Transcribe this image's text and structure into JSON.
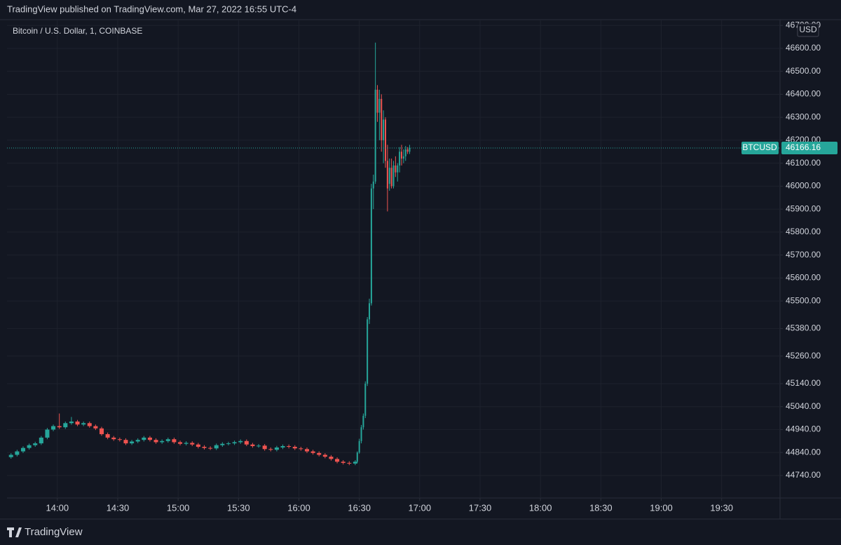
{
  "header": "TradingView published on TradingView.com, Mar 27, 2022 16:55 UTC-4",
  "footer": "TradingView",
  "chart_data": {
    "type": "candlestick",
    "title": "Bitcoin / U.S. Dollar, 1, COINBASE",
    "currency": "USD",
    "up_color": "#26a69a",
    "down_color": "#ef5350",
    "grid": true,
    "xlim": [
      "13:35",
      "19:59"
    ],
    "xticks": [
      "14:00",
      "14:30",
      "15:00",
      "15:30",
      "16:00",
      "16:30",
      "17:00",
      "17:30",
      "18:00",
      "18:30",
      "19:00",
      "19:30"
    ],
    "ylim": [
      44642,
      46719
    ],
    "yticks": [
      {
        "value": 44740,
        "label": "44740.00"
      },
      {
        "value": 44840,
        "label": "44840.00"
      },
      {
        "value": 44940,
        "label": "44940.00"
      },
      {
        "value": 45040,
        "label": "45040.00"
      },
      {
        "value": 45140,
        "label": "45140.00"
      },
      {
        "value": 45260,
        "label": "45260.00"
      },
      {
        "value": 45380,
        "label": "45380.00"
      },
      {
        "value": 45500,
        "label": "45500.00"
      },
      {
        "value": 45600,
        "label": "45600.00"
      },
      {
        "value": 45700,
        "label": "45700.00"
      },
      {
        "value": 45800,
        "label": "45800.00"
      },
      {
        "value": 45900,
        "label": "45900.00"
      },
      {
        "value": 46000,
        "label": "46000.00"
      },
      {
        "value": 46100,
        "label": "46100.00"
      },
      {
        "value": 46200,
        "label": "46200.00"
      },
      {
        "value": 46300,
        "label": "46300.00"
      },
      {
        "value": 46400,
        "label": "46400.00"
      },
      {
        "value": 46500,
        "label": "46500.00"
      },
      {
        "value": 46600,
        "label": "46600.00"
      },
      {
        "value": 46700,
        "label": "46700.00"
      }
    ],
    "last_price": {
      "symbol": "BTCUSD",
      "value": 46166.16
    },
    "candles": {
      "x": [
        "13:37",
        "13:40",
        "13:43",
        "13:46",
        "13:49",
        "13:52",
        "13:55",
        "13:58",
        "14:01",
        "14:04",
        "14:07",
        "14:10",
        "14:13",
        "14:16",
        "14:19",
        "14:22",
        "14:25",
        "14:28",
        "14:31",
        "14:34",
        "14:37",
        "14:40",
        "14:43",
        "14:46",
        "14:49",
        "14:52",
        "14:55",
        "14:58",
        "15:01",
        "15:04",
        "15:07",
        "15:10",
        "15:13",
        "15:16",
        "15:19",
        "15:22",
        "15:25",
        "15:28",
        "15:31",
        "15:34",
        "15:37",
        "15:40",
        "15:43",
        "15:46",
        "15:49",
        "15:52",
        "15:55",
        "15:58",
        "16:01",
        "16:04",
        "16:07",
        "16:10",
        "16:13",
        "16:16",
        "16:19",
        "16:22",
        "16:25",
        "16:28",
        "16:29",
        "16:30",
        "16:31",
        "16:32",
        "16:33",
        "16:34",
        "16:35",
        "16:36",
        "16:37",
        "16:38",
        "16:39",
        "16:40",
        "16:41",
        "16:42",
        "16:43",
        "16:44",
        "16:45",
        "16:46",
        "16:47",
        "16:48",
        "16:49",
        "16:50",
        "16:51",
        "16:52",
        "16:53",
        "16:54",
        "16:55"
      ],
      "open": [
        44820,
        44830,
        44845,
        44860,
        44872,
        44880,
        44905,
        44940,
        44955,
        44950,
        44968,
        44975,
        44962,
        44968,
        44955,
        44945,
        44920,
        44905,
        44898,
        44895,
        44880,
        44888,
        44895,
        44905,
        44895,
        44885,
        44890,
        44898,
        44885,
        44878,
        44882,
        44875,
        44865,
        44860,
        44858,
        44872,
        44878,
        44880,
        44885,
        44890,
        44875,
        44868,
        44870,
        44855,
        44852,
        44862,
        44868,
        44865,
        44858,
        44855,
        44845,
        44838,
        44830,
        44822,
        44812,
        44800,
        44795,
        44792,
        44800,
        44840,
        44890,
        44950,
        45000,
        45140,
        45420,
        45490,
        45990,
        46020,
        46420,
        46320,
        46380,
        46200,
        46290,
        46110,
        46010,
        46080,
        46000,
        46090,
        46060,
        46090,
        46150,
        46120,
        46130,
        46160,
        46150
      ],
      "high": [
        44837,
        44852,
        44867,
        44879,
        44887,
        44912,
        44947,
        44962,
        45010,
        44975,
        44995,
        44982,
        44975,
        44975,
        44962,
        44952,
        44927,
        44912,
        44905,
        44902,
        44895,
        44902,
        44912,
        44912,
        44902,
        44897,
        44905,
        44905,
        44892,
        44889,
        44889,
        44882,
        44872,
        44867,
        44879,
        44885,
        44887,
        44892,
        44897,
        44897,
        44882,
        44877,
        44877,
        44862,
        44869,
        44875,
        44875,
        44872,
        44865,
        44862,
        44852,
        44845,
        44837,
        44829,
        44819,
        44807,
        44802,
        44807,
        44845,
        44900,
        44960,
        45010,
        45150,
        45430,
        45510,
        46010,
        46050,
        46625,
        46440,
        46420,
        46400,
        46330,
        46300,
        46180,
        46120,
        46120,
        46110,
        46130,
        46100,
        46170,
        46180,
        46160,
        46175,
        46170,
        46180
      ],
      "low": [
        44813,
        44823,
        44838,
        44853,
        44865,
        44873,
        44898,
        44933,
        44943,
        44943,
        44961,
        44955,
        44955,
        44948,
        44938,
        44913,
        44898,
        44891,
        44888,
        44873,
        44873,
        44881,
        44888,
        44888,
        44878,
        44878,
        44883,
        44878,
        44871,
        44871,
        44868,
        44858,
        44853,
        44851,
        44851,
        44865,
        44871,
        44873,
        44878,
        44868,
        44861,
        44861,
        44848,
        44845,
        44845,
        44855,
        44858,
        44851,
        44848,
        44838,
        44831,
        44823,
        44815,
        44805,
        44793,
        44788,
        44785,
        44785,
        44795,
        44835,
        44880,
        44940,
        44990,
        45130,
        45400,
        45480,
        45900,
        46010,
        46280,
        46200,
        46150,
        46100,
        46080,
        45890,
        45980,
        45990,
        45990,
        46040,
        46020,
        46060,
        46090,
        46100,
        46110,
        46140,
        46140
      ],
      "close": [
        44830,
        44845,
        44860,
        44872,
        44880,
        44905,
        44940,
        44955,
        44950,
        44968,
        44975,
        44962,
        44968,
        44955,
        44945,
        44920,
        44905,
        44898,
        44895,
        44880,
        44888,
        44895,
        44905,
        44895,
        44885,
        44890,
        44898,
        44885,
        44878,
        44882,
        44875,
        44865,
        44860,
        44858,
        44872,
        44878,
        44880,
        44885,
        44890,
        44875,
        44868,
        44870,
        44855,
        44852,
        44862,
        44868,
        44865,
        44858,
        44855,
        44845,
        44838,
        44830,
        44822,
        44812,
        44800,
        44795,
        44792,
        44800,
        44840,
        44890,
        44950,
        45000,
        45140,
        45420,
        45490,
        45990,
        46020,
        46420,
        46320,
        46380,
        46200,
        46290,
        46110,
        45990,
        46080,
        46000,
        46090,
        46060,
        46090,
        46150,
        46120,
        46130,
        46160,
        46150,
        46166.16
      ]
    }
  }
}
